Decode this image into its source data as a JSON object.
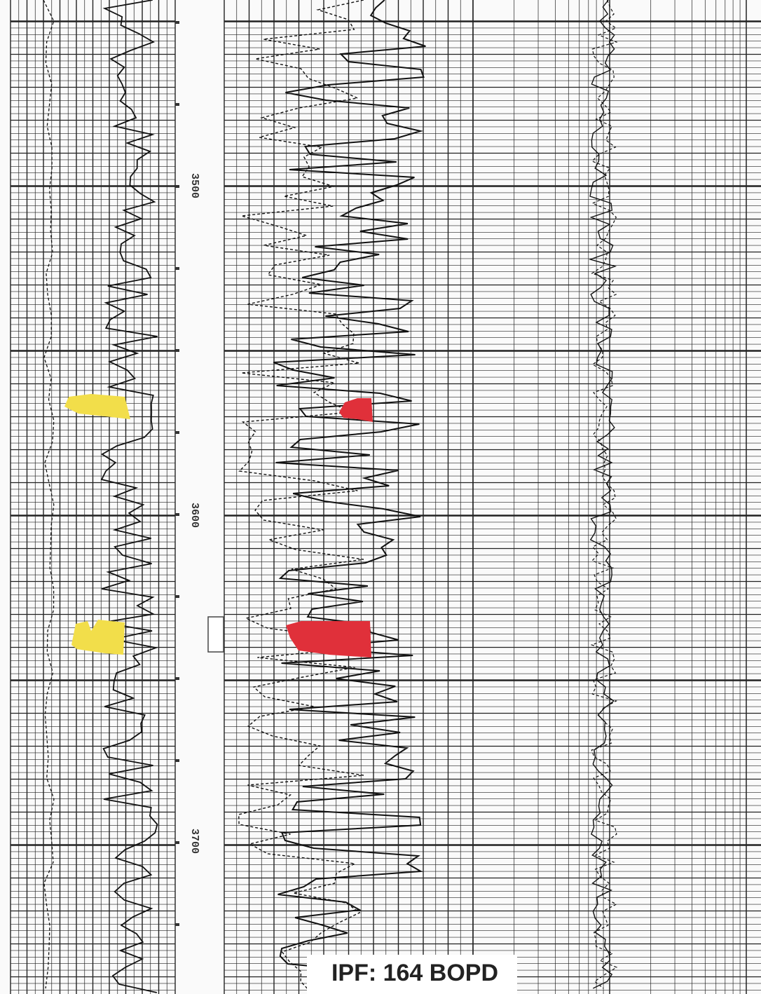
{
  "depth_labels": [
    "3500",
    "3600",
    "3700"
  ],
  "annotation": "IPF: 164 BOPD"
}
